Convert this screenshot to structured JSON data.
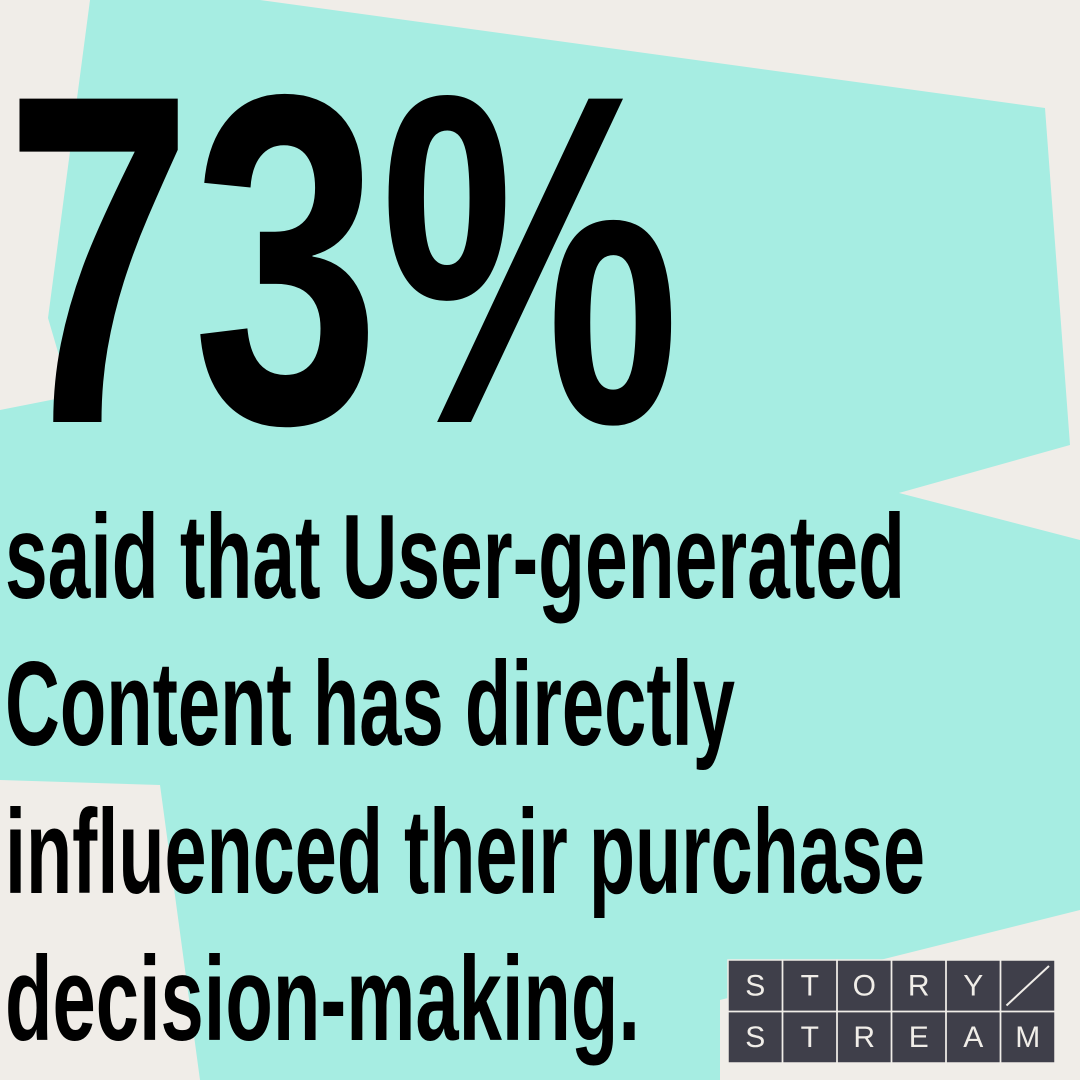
{
  "headline": "73%",
  "body_lines": [
    "said that User-generated",
    "Content has directly",
    "influenced their purchase",
    "decision-making."
  ],
  "logo": {
    "row1": [
      "S",
      "T",
      "O",
      "R",
      "Y"
    ],
    "row2": [
      "S",
      "T",
      "R",
      "E",
      "A",
      "M"
    ]
  }
}
